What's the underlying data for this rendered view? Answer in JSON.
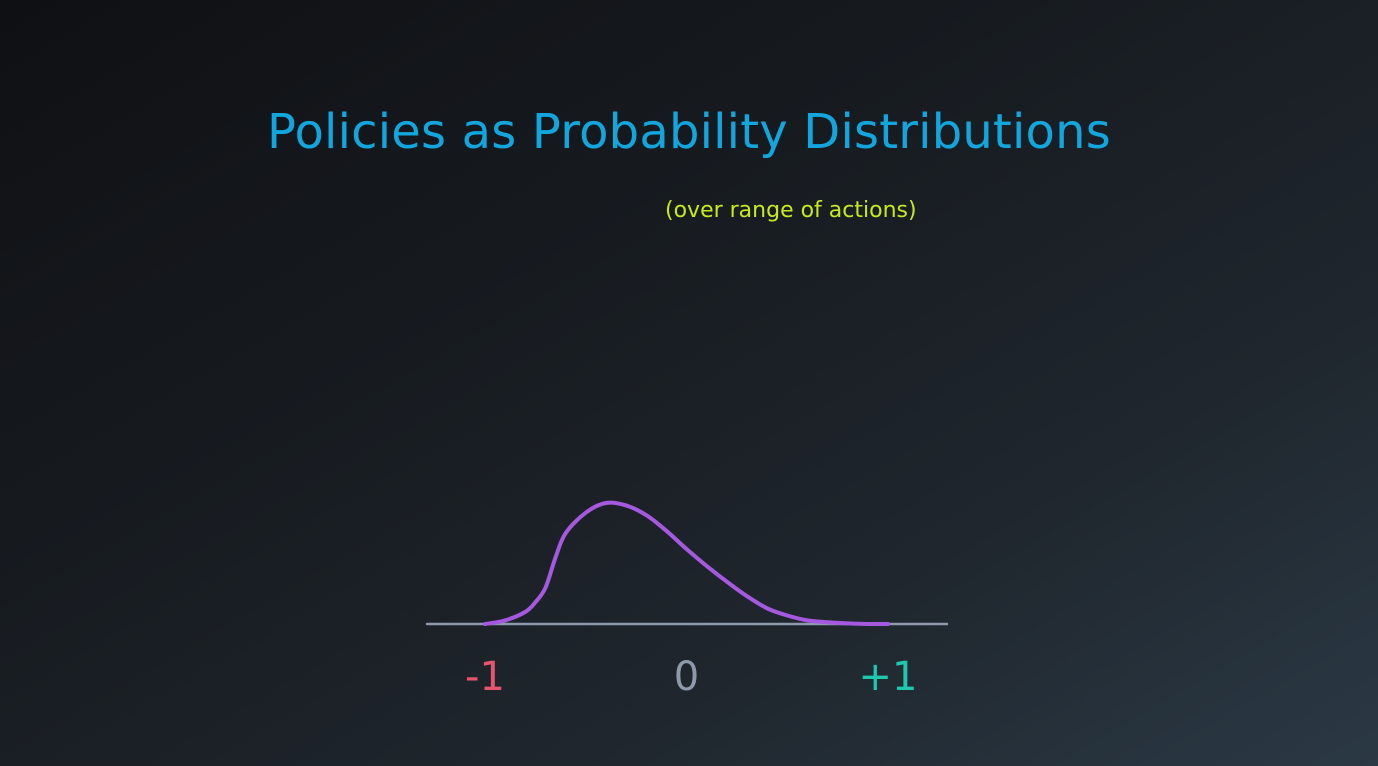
{
  "slide": {
    "title": "Policies as Probability Distributions",
    "subtitle": "(over range of actions)"
  },
  "colors": {
    "title": "#12a6de",
    "subtitle": "#c6ea1c",
    "curve": "#a659e0",
    "axis": "#8e9aab",
    "tick_negative": "#e9546d",
    "tick_zero": "#8e9aab",
    "tick_positive": "#1ec8b0"
  },
  "chart_data": {
    "type": "line",
    "title": "",
    "xlabel": "",
    "ylabel": "",
    "xlim": [
      -1,
      1
    ],
    "ylim": [
      0,
      1
    ],
    "grid": false,
    "x_ticks": [
      {
        "value": -1,
        "label": "-1"
      },
      {
        "value": 0,
        "label": "0"
      },
      {
        "value": 1,
        "label": "+1"
      }
    ],
    "series": [
      {
        "x": [
          -1.0,
          -0.9,
          -0.8,
          -0.75,
          -0.7,
          -0.65,
          -0.6,
          -0.5,
          -0.4,
          -0.3,
          -0.2,
          -0.1,
          0.0,
          0.1,
          0.2,
          0.3,
          0.4,
          0.5,
          0.6,
          0.7,
          0.8,
          0.9,
          1.0
        ],
        "y": [
          0.0,
          0.03,
          0.1,
          0.18,
          0.3,
          0.55,
          0.75,
          0.92,
          1.0,
          0.98,
          0.9,
          0.77,
          0.62,
          0.48,
          0.35,
          0.23,
          0.13,
          0.07,
          0.03,
          0.015,
          0.005,
          0.0,
          0.0
        ]
      }
    ]
  }
}
